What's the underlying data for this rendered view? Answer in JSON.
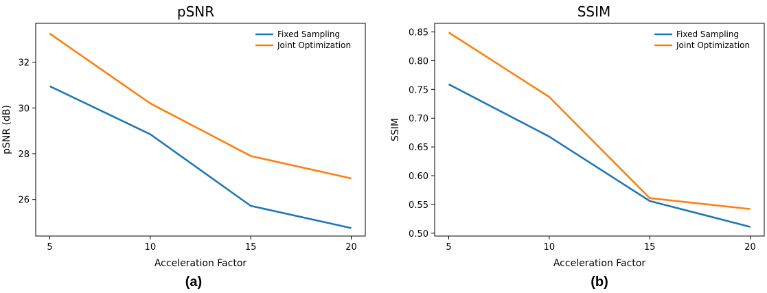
{
  "chart_data": [
    {
      "type": "line",
      "id": "psnr",
      "title": "pSNR",
      "xlabel": "Acceleration Factor",
      "ylabel": "pSNR (dB)",
      "caption": "(a)",
      "x": [
        5,
        10,
        15,
        20
      ],
      "xlim": [
        4.3,
        20.7
      ],
      "ylim": [
        24.4,
        33.7
      ],
      "xticks": [
        5,
        10,
        15,
        20
      ],
      "yticks": [
        26,
        28,
        30,
        32
      ],
      "legend_position": "top-right",
      "series": [
        {
          "name": "Fixed Sampling",
          "color": "#1f77b4",
          "values": [
            30.95,
            28.85,
            25.72,
            24.75
          ]
        },
        {
          "name": "Joint Optimization",
          "color": "#ff7f0e",
          "values": [
            33.25,
            30.2,
            27.9,
            26.92
          ]
        }
      ]
    },
    {
      "type": "line",
      "id": "ssim",
      "title": "SSIM",
      "xlabel": "Acceleration Factor",
      "ylabel": "SSIM",
      "caption": "(b)",
      "x": [
        5,
        10,
        15,
        20
      ],
      "xlim": [
        4.3,
        20.7
      ],
      "ylim": [
        0.495,
        0.865
      ],
      "xticks": [
        5,
        10,
        15,
        20
      ],
      "yticks": [
        0.5,
        0.55,
        0.6,
        0.65,
        0.7,
        0.75,
        0.8,
        0.85
      ],
      "ytick_labels": [
        "0.50",
        "0.55",
        "0.60",
        "0.65",
        "0.70",
        "0.75",
        "0.80",
        "0.85"
      ],
      "legend_position": "top-right",
      "series": [
        {
          "name": "Fixed Sampling",
          "color": "#1f77b4",
          "values": [
            0.759,
            0.668,
            0.556,
            0.511
          ]
        },
        {
          "name": "Joint Optimization",
          "color": "#ff7f0e",
          "values": [
            0.849,
            0.737,
            0.561,
            0.542
          ]
        }
      ]
    }
  ]
}
